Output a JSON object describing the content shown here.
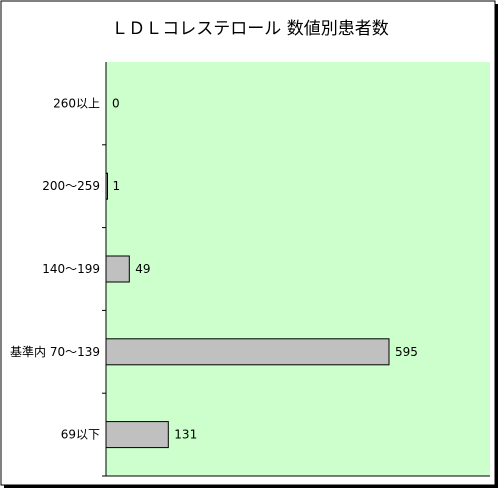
{
  "chart_data": {
    "type": "bar",
    "orientation": "horizontal",
    "title": "ＬＤＬコレステロール 数値別患者数",
    "xlabel": "",
    "ylabel": "",
    "categories": [
      "260以上",
      "200～259",
      "140～199",
      "基準内 70～139",
      "69以下"
    ],
    "values": [
      0,
      1,
      49,
      595,
      131
    ],
    "data_labels": [
      "0",
      "1",
      "49",
      "595",
      "131"
    ],
    "xlim": [
      0,
      700
    ],
    "grid": false,
    "legend": "none",
    "colors": {
      "plot_background": "#ccffcc",
      "bar_fill": "#c0c0c0",
      "bar_stroke": "#000000",
      "frame": "#000000",
      "axis": "#000000"
    }
  }
}
